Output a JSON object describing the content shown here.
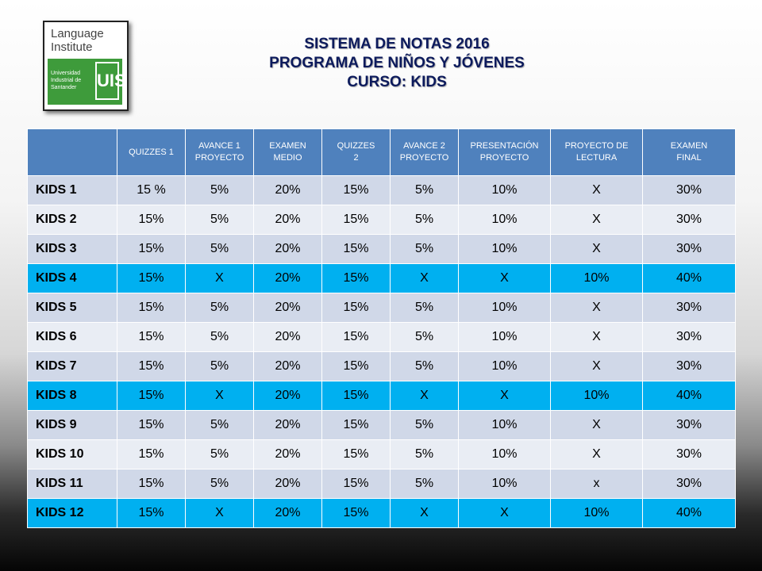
{
  "logo": {
    "line1": "Language",
    "line2": "Institute",
    "green_text": [
      "Universidad",
      "Industrial de",
      "Santander"
    ],
    "seal": "UIS"
  },
  "title": {
    "line1": "SISTEMA DE NOTAS 2016",
    "line2": "PROGRAMA DE NIÑOS Y JÓVENES",
    "line3": "CURSO: KIDS"
  },
  "table": {
    "headers": [
      [
        "QUIZZES 1"
      ],
      [
        "AVANCE 1",
        "PROYECTO"
      ],
      [
        "EXAMEN",
        "MEDIO"
      ],
      [
        "QUIZZES",
        "2"
      ],
      [
        "AVANCE 2",
        "PROYECTO"
      ],
      [
        "PRESENTACIÓN",
        "PROYECTO"
      ],
      [
        "PROYECTO DE",
        "LECTURA"
      ],
      [
        "EXAMEN",
        "FINAL"
      ]
    ],
    "rows": [
      {
        "label": "KIDS 1",
        "highlight": false,
        "cells": [
          "15 %",
          "5%",
          "20%",
          "15%",
          "5%",
          "10%",
          "X",
          "30%"
        ]
      },
      {
        "label": "KIDS 2",
        "highlight": false,
        "cells": [
          "15%",
          "5%",
          "20%",
          "15%",
          "5%",
          "10%",
          "X",
          "30%"
        ]
      },
      {
        "label": "KIDS 3",
        "highlight": false,
        "cells": [
          "15%",
          "5%",
          "20%",
          "15%",
          "5%",
          "10%",
          "X",
          "30%"
        ]
      },
      {
        "label": "KIDS 4",
        "highlight": true,
        "cells": [
          "15%",
          "X",
          "20%",
          "15%",
          "X",
          "X",
          "10%",
          "40%"
        ]
      },
      {
        "label": "KIDS 5",
        "highlight": false,
        "cells": [
          "15%",
          "5%",
          "20%",
          "15%",
          "5%",
          "10%",
          "X",
          "30%"
        ]
      },
      {
        "label": "KIDS 6",
        "highlight": false,
        "cells": [
          "15%",
          "5%",
          "20%",
          "15%",
          "5%",
          "10%",
          "X",
          "30%"
        ]
      },
      {
        "label": "KIDS 7",
        "highlight": false,
        "cells": [
          "15%",
          "5%",
          "20%",
          "15%",
          "5%",
          "10%",
          "X",
          "30%"
        ]
      },
      {
        "label": "KIDS 8",
        "highlight": true,
        "cells": [
          "15%",
          "X",
          "20%",
          "15%",
          "X",
          "X",
          "10%",
          "40%"
        ]
      },
      {
        "label": "KIDS 9",
        "highlight": false,
        "cells": [
          "15%",
          "5%",
          "20%",
          "15%",
          "5%",
          "10%",
          "X",
          "30%"
        ]
      },
      {
        "label": "KIDS 10",
        "highlight": false,
        "cells": [
          "15%",
          "5%",
          "20%",
          "15%",
          "5%",
          "10%",
          "X",
          "30%"
        ]
      },
      {
        "label": "KIDS 11",
        "highlight": false,
        "cells": [
          "15%",
          "5%",
          "20%",
          "15%",
          "5%",
          "10%",
          "x",
          "30%"
        ]
      },
      {
        "label": "KIDS 12",
        "highlight": true,
        "cells": [
          "15%",
          "X",
          "20%",
          "15%",
          "X",
          "X",
          "10%",
          "40%"
        ]
      }
    ]
  },
  "colors": {
    "header_bg": "#4f81bd",
    "row_odd": "#d0d8e8",
    "row_even": "#e9edf4",
    "row_highlight": "#00b0f0",
    "title_text": "#0c1a5c",
    "logo_green": "#3e9b3b"
  }
}
